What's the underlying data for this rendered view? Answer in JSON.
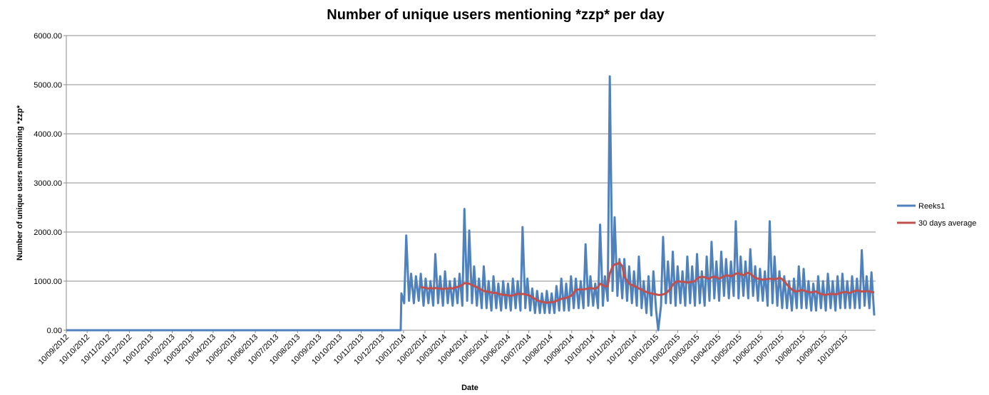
{
  "chart_data": {
    "type": "line",
    "title": "Number of unique users mentioning *zzp* per day",
    "x_label": "Date",
    "y_label": "Number of unique users metnioning *zzp*",
    "xlim": [
      "10/09/2012",
      "23/11/2015"
    ],
    "ylim": [
      0,
      6000
    ],
    "yticks": [
      {
        "value": 0,
        "label": "0.00"
      },
      {
        "value": 1000,
        "label": "1000.00"
      },
      {
        "value": 2000,
        "label": "2000.00"
      },
      {
        "value": 3000,
        "label": "3000.00"
      },
      {
        "value": 4000,
        "label": "4000.00"
      },
      {
        "value": 5000,
        "label": "5000.00"
      },
      {
        "value": 6000,
        "label": "6000.00"
      }
    ],
    "xticks": [
      "10/09/2012",
      "10/10/2012",
      "10/11/2012",
      "10/12/2012",
      "10/01/2013",
      "10/02/2013",
      "10/03/2013",
      "10/04/2013",
      "10/05/2013",
      "10/06/2013",
      "10/07/2013",
      "10/08/2013",
      "10/09/2013",
      "10/10/2013",
      "10/11/2013",
      "10/12/2013",
      "10/01/2014",
      "10/02/2014",
      "10/03/2014",
      "10/04/2014",
      "10/05/2014",
      "10/06/2014",
      "10/07/2014",
      "10/08/2014",
      "10/09/2014",
      "10/10/2014",
      "10/11/2014",
      "10/12/2014",
      "10/01/2015",
      "10/02/2015",
      "10/03/2015",
      "10/04/2015",
      "10/05/2015",
      "10/06/2015",
      "10/07/2015",
      "10/08/2015",
      "10/09/2015",
      "10/10/2015"
    ],
    "grid": true,
    "legend": "right",
    "x": [
      "10/09/2012",
      "06/01/2014",
      "07/01/2014",
      "11/01/2014",
      "14/01/2014",
      "18/01/2014",
      "21/01/2014",
      "25/01/2014",
      "28/01/2014",
      "01/02/2014",
      "04/02/2014",
      "08/02/2014",
      "11/02/2014",
      "15/02/2014",
      "18/02/2014",
      "22/02/2014",
      "25/02/2014",
      "01/03/2014",
      "04/03/2014",
      "08/03/2014",
      "11/03/2014",
      "15/03/2014",
      "18/03/2014",
      "22/03/2014",
      "25/03/2014",
      "29/03/2014",
      "01/04/2014",
      "05/04/2014",
      "08/04/2014",
      "12/04/2014",
      "15/04/2014",
      "19/04/2014",
      "22/04/2014",
      "26/04/2014",
      "29/04/2014",
      "03/05/2014",
      "06/05/2014",
      "10/05/2014",
      "13/05/2014",
      "17/05/2014",
      "20/05/2014",
      "24/05/2014",
      "27/05/2014",
      "31/05/2014",
      "03/06/2014",
      "07/06/2014",
      "10/06/2014",
      "14/06/2014",
      "17/06/2014",
      "21/06/2014",
      "24/06/2014",
      "28/06/2014",
      "01/07/2014",
      "05/07/2014",
      "08/07/2014",
      "12/07/2014",
      "15/07/2014",
      "19/07/2014",
      "22/07/2014",
      "26/07/2014",
      "29/07/2014",
      "02/08/2014",
      "05/08/2014",
      "09/08/2014",
      "12/08/2014",
      "16/08/2014",
      "19/08/2014",
      "23/08/2014",
      "26/08/2014",
      "30/08/2014",
      "02/09/2014",
      "06/09/2014",
      "09/09/2014",
      "13/09/2014",
      "16/09/2014",
      "20/09/2014",
      "23/09/2014",
      "27/09/2014",
      "30/09/2014",
      "04/10/2014",
      "07/10/2014",
      "11/10/2014",
      "14/10/2014",
      "18/10/2014",
      "21/10/2014",
      "25/10/2014",
      "28/10/2014",
      "01/11/2014",
      "04/11/2014",
      "08/11/2014",
      "11/11/2014",
      "15/11/2014",
      "18/11/2014",
      "22/11/2014",
      "25/11/2014",
      "29/11/2014",
      "02/12/2014",
      "06/12/2014",
      "09/12/2014",
      "13/12/2014",
      "16/12/2014",
      "20/12/2014",
      "23/12/2014",
      "27/12/2014",
      "30/12/2014",
      "03/01/2015",
      "06/01/2015",
      "10/01/2015",
      "13/01/2015",
      "17/01/2015",
      "20/01/2015",
      "24/01/2015",
      "27/01/2015",
      "31/01/2015",
      "03/02/2015",
      "07/02/2015",
      "10/02/2015",
      "14/02/2015",
      "17/02/2015",
      "21/02/2015",
      "24/02/2015",
      "28/02/2015",
      "03/03/2015",
      "07/03/2015",
      "10/03/2015",
      "14/03/2015",
      "17/03/2015",
      "21/03/2015",
      "24/03/2015",
      "28/03/2015",
      "31/03/2015",
      "04/04/2015",
      "07/04/2015",
      "11/04/2015",
      "14/04/2015",
      "18/04/2015",
      "21/04/2015",
      "25/04/2015",
      "28/04/2015",
      "02/05/2015",
      "05/05/2015",
      "09/05/2015",
      "12/05/2015",
      "16/05/2015",
      "19/05/2015",
      "23/05/2015",
      "26/05/2015",
      "30/05/2015",
      "02/06/2015",
      "06/06/2015",
      "09/06/2015",
      "13/06/2015",
      "16/06/2015",
      "20/06/2015",
      "23/06/2015",
      "27/06/2015",
      "30/06/2015",
      "04/07/2015",
      "07/07/2015",
      "11/07/2015",
      "14/07/2015",
      "18/07/2015",
      "21/07/2015",
      "25/07/2015",
      "28/07/2015",
      "01/08/2015",
      "04/08/2015",
      "08/08/2015",
      "11/08/2015",
      "15/08/2015",
      "18/08/2015",
      "22/08/2015",
      "25/08/2015",
      "29/08/2015",
      "01/09/2015",
      "05/09/2015",
      "08/09/2015",
      "12/09/2015",
      "15/09/2015",
      "19/09/2015",
      "22/09/2015",
      "26/09/2015",
      "29/09/2015",
      "03/10/2015",
      "06/10/2015",
      "10/10/2015",
      "13/10/2015",
      "17/10/2015",
      "20/10/2015",
      "24/10/2015",
      "27/10/2015",
      "31/10/2015",
      "03/11/2015",
      "07/11/2015",
      "10/11/2015",
      "14/11/2015",
      "17/11/2015",
      "21/11/2015"
    ],
    "series": [
      {
        "name": "Reeks1",
        "color": "#4f81bd",
        "values": [
          0,
          0,
          750,
          550,
          1930,
          600,
          1150,
          550,
          1100,
          600,
          1150,
          500,
          1050,
          550,
          1000,
          500,
          1550,
          550,
          1100,
          500,
          1200,
          550,
          1000,
          500,
          1050,
          550,
          1150,
          500,
          2470,
          600,
          2030,
          550,
          1300,
          500,
          1050,
          450,
          1300,
          450,
          1000,
          400,
          1100,
          450,
          950,
          400,
          1000,
          450,
          950,
          400,
          1050,
          450,
          1000,
          400,
          2100,
          450,
          1050,
          400,
          850,
          350,
          800,
          350,
          750,
          350,
          800,
          350,
          750,
          350,
          900,
          400,
          1050,
          400,
          950,
          400,
          1100,
          450,
          1050,
          450,
          1000,
          450,
          1750,
          500,
          1100,
          500,
          950,
          450,
          2150,
          500,
          1100,
          600,
          5170,
          800,
          2300,
          700,
          1450,
          650,
          1450,
          600,
          1300,
          550,
          1200,
          500,
          1500,
          450,
          1000,
          350,
          1100,
          300,
          1200,
          400,
          0,
          500,
          1900,
          550,
          1400,
          550,
          1600,
          500,
          1300,
          550,
          1200,
          500,
          1500,
          550,
          1300,
          500,
          1550,
          550,
          1200,
          500,
          1500,
          600,
          1800,
          650,
          1400,
          600,
          1600,
          700,
          1450,
          650,
          1400,
          700,
          2220,
          650,
          1500,
          700,
          1400,
          650,
          1650,
          700,
          1300,
          600,
          1250,
          600,
          1200,
          500,
          2220,
          550,
          1500,
          500,
          1200,
          450,
          1100,
          450,
          1000,
          400,
          1050,
          450,
          1300,
          450,
          1250,
          450,
          1000,
          400,
          950,
          400,
          1100,
          450,
          1000,
          400,
          1150,
          450,
          1000,
          400,
          1100,
          450,
          1150,
          450,
          1000,
          450,
          1100,
          450,
          1050,
          450,
          1630,
          500,
          1100,
          450,
          1180,
          300
        ]
      },
      {
        "name": "30 days average",
        "color": "#c0504d",
        "values": [
          null,
          null,
          null,
          null,
          null,
          null,
          null,
          null,
          null,
          null,
          880,
          870,
          860,
          850,
          860,
          850,
          860,
          850,
          850,
          840,
          850,
          850,
          860,
          850,
          870,
          880,
          900,
          920,
          960,
          950,
          950,
          920,
          900,
          880,
          850,
          820,
          800,
          790,
          780,
          770,
          760,
          760,
          740,
          730,
          720,
          720,
          710,
          700,
          710,
          730,
          740,
          740,
          740,
          730,
          720,
          700,
          670,
          640,
          610,
          590,
          580,
          570,
          560,
          570,
          570,
          580,
          600,
          620,
          640,
          650,
          660,
          680,
          700,
          760,
          820,
          830,
          830,
          830,
          840,
          850,
          860,
          850,
          840,
          880,
          950,
          920,
          890,
          900,
          1150,
          1300,
          1340,
          1350,
          1380,
          1300,
          1100,
          1000,
          950,
          920,
          900,
          880,
          850,
          830,
          800,
          780,
          760,
          750,
          740,
          730,
          720,
          720,
          730,
          750,
          790,
          850,
          930,
          980,
          1000,
          990,
          990,
          980,
          970,
          980,
          990,
          1000,
          1050,
          1080,
          1090,
          1080,
          1060,
          1050,
          1080,
          1090,
          1080,
          1050,
          1070,
          1100,
          1120,
          1110,
          1100,
          1120,
          1150,
          1160,
          1140,
          1120,
          1150,
          1170,
          1150,
          1100,
          1070,
          1050,
          1040,
          1030,
          1040,
          1040,
          1050,
          1040,
          1040,
          1050,
          1070,
          1040,
          1000,
          930,
          880,
          830,
          800,
          790,
          800,
          820,
          810,
          790,
          780,
          770,
          780,
          790,
          760,
          740,
          730,
          720,
          730,
          740,
          740,
          730,
          740,
          760,
          770,
          780,
          770,
          760,
          780,
          800,
          810,
          800,
          790,
          790,
          800,
          790,
          780,
          770
        ]
      }
    ]
  }
}
